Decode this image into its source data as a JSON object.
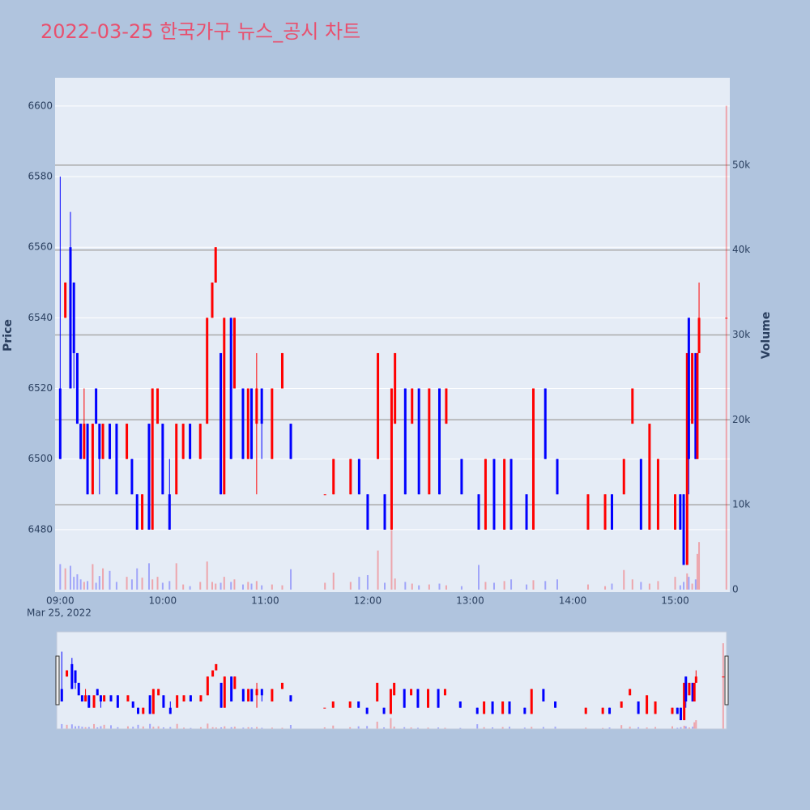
{
  "chart_data": {
    "type": "candlestick",
    "title": "2022-03-25 한국가구 뉴스_공시 차트",
    "ylabel": "Price",
    "y2label": "Volume",
    "x_date_label": "Mar 25, 2022",
    "increasing_color": "#ff0000",
    "decreasing_color": "#0000ff",
    "xlim": [
      "08:57",
      "15:32"
    ],
    "xticks": [
      "09:00",
      "10:00",
      "11:00",
      "12:00",
      "13:00",
      "14:00",
      "15:00"
    ],
    "ylim": [
      6462.3,
      6608
    ],
    "yticks": [
      6480,
      6500,
      6520,
      6540,
      6560,
      6580,
      6600
    ],
    "y2lim": [
      -300,
      60300
    ],
    "y2ticks": [
      0,
      {
        "value": 10000,
        "label": "10k"
      },
      {
        "value": 20000,
        "label": "20k"
      },
      {
        "value": 30000,
        "label": "30k"
      },
      {
        "value": 40000,
        "label": "40k"
      },
      {
        "value": 50000,
        "label": "50k"
      }
    ],
    "grid": true,
    "rangeslider": true,
    "x": [
      "09:00",
      "09:03",
      "09:06",
      "09:08",
      "09:10",
      "09:12",
      "09:14",
      "09:16",
      "09:19",
      "09:21",
      "09:23",
      "09:25",
      "09:29",
      "09:33",
      "09:39",
      "09:42",
      "09:45",
      "09:48",
      "09:52",
      "09:54",
      "09:57",
      "10:00",
      "10:04",
      "10:08",
      "10:12",
      "10:16",
      "10:22",
      "10:26",
      "10:29",
      "10:31",
      "10:34",
      "10:36",
      "10:40",
      "10:42",
      "10:47",
      "10:50",
      "10:52",
      "10:55",
      "10:58",
      "11:04",
      "11:10",
      "11:15",
      "11:35",
      "11:40",
      "11:50",
      "11:55",
      "12:00",
      "12:06",
      "12:10",
      "12:14",
      "12:16",
      "12:22",
      "12:26",
      "12:30",
      "12:36",
      "12:42",
      "12:46",
      "12:55",
      "13:05",
      "13:09",
      "13:14",
      "13:20",
      "13:24",
      "13:33",
      "13:37",
      "13:44",
      "13:51",
      "14:09",
      "14:19",
      "14:23",
      "14:30",
      "14:35",
      "14:40",
      "14:45",
      "14:50",
      "15:00",
      "15:03",
      "15:05",
      "15:07",
      "15:08",
      "15:10",
      "15:12",
      "15:13",
      "15:14",
      "15:30"
    ],
    "open": [
      6520,
      6540,
      6560,
      6550,
      6530,
      6510,
      6500,
      6510,
      6490,
      6520,
      6510,
      6500,
      6510,
      6510,
      6500,
      6500,
      6490,
      6480,
      6510,
      6480,
      6510,
      6510,
      6490,
      6490,
      6500,
      6510,
      6500,
      6510,
      6540,
      6550,
      6530,
      6490,
      6540,
      6520,
      6520,
      6500,
      6520,
      6510,
      6520,
      6500,
      6520,
      6510,
      6490,
      6490,
      6490,
      6500,
      6490,
      6500,
      6490,
      6480,
      6510,
      6520,
      6510,
      6520,
      6490,
      6520,
      6510,
      6500,
      6490,
      6480,
      6500,
      6480,
      6500,
      6490,
      6480,
      6520,
      6500,
      6480,
      6480,
      6490,
      6490,
      6510,
      6500,
      6480,
      6480,
      6480,
      6490,
      6490,
      6470,
      6540,
      6510,
      6530,
      6500,
      6530,
      6540
    ],
    "high": [
      6580,
      6550,
      6570,
      6550,
      6530,
      6510,
      6520,
      6510,
      6510,
      6520,
      6510,
      6510,
      6510,
      6510,
      6510,
      6500,
      6490,
      6490,
      6510,
      6520,
      6520,
      6510,
      6500,
      6510,
      6510,
      6510,
      6510,
      6540,
      6550,
      6560,
      6530,
      6540,
      6540,
      6540,
      6520,
      6520,
      6520,
      6530,
      6520,
      6520,
      6530,
      6510,
      6490,
      6500,
      6500,
      6500,
      6490,
      6530,
      6490,
      6520,
      6530,
      6520,
      6520,
      6520,
      6520,
      6520,
      6520,
      6500,
      6490,
      6500,
      6500,
      6500,
      6500,
      6490,
      6520,
      6520,
      6500,
      6490,
      6490,
      6490,
      6500,
      6520,
      6500,
      6510,
      6500,
      6490,
      6490,
      6490,
      6530,
      6540,
      6530,
      6530,
      6530,
      6550,
      6540
    ],
    "low": [
      6500,
      6540,
      6520,
      6520,
      6510,
      6500,
      6500,
      6490,
      6490,
      6510,
      6490,
      6500,
      6500,
      6490,
      6500,
      6490,
      6480,
      6480,
      6480,
      6480,
      6510,
      6490,
      6480,
      6490,
      6500,
      6500,
      6500,
      6510,
      6540,
      6550,
      6490,
      6490,
      6500,
      6520,
      6500,
      6500,
      6500,
      6490,
      6500,
      6500,
      6520,
      6500,
      6490,
      6490,
      6490,
      6490,
      6480,
      6500,
      6480,
      6480,
      6510,
      6490,
      6510,
      6490,
      6490,
      6490,
      6510,
      6490,
      6480,
      6480,
      6480,
      6480,
      6480,
      6480,
      6480,
      6500,
      6490,
      6480,
      6480,
      6480,
      6490,
      6510,
      6480,
      6480,
      6480,
      6480,
      6480,
      6470,
      6470,
      6490,
      6510,
      6500,
      6500,
      6530,
      6540
    ],
    "close": [
      6500,
      6550,
      6520,
      6530,
      6510,
      6500,
      6510,
      6490,
      6510,
      6510,
      6500,
      6510,
      6500,
      6490,
      6510,
      6490,
      6480,
      6490,
      6480,
      6520,
      6520,
      6490,
      6480,
      6510,
      6510,
      6500,
      6510,
      6540,
      6550,
      6560,
      6490,
      6540,
      6500,
      6540,
      6500,
      6520,
      6500,
      6520,
      6510,
      6520,
      6530,
      6500,
      6490,
      6500,
      6500,
      6490,
      6480,
      6530,
      6480,
      6520,
      6530,
      6490,
      6520,
      6490,
      6520,
      6490,
      6520,
      6490,
      6480,
      6500,
      6480,
      6500,
      6480,
      6480,
      6520,
      6500,
      6490,
      6490,
      6490,
      6480,
      6500,
      6520,
      6480,
      6510,
      6500,
      6490,
      6480,
      6470,
      6530,
      6500,
      6530,
      6500,
      6530,
      6540,
      6540
    ],
    "volume": [
      3000,
      2500,
      2800,
      1500,
      1800,
      1200,
      900,
      1000,
      3000,
      800,
      1600,
      2500,
      2200,
      900,
      1500,
      1200,
      2500,
      1400,
      3100,
      1200,
      1500,
      800,
      1000,
      3100,
      600,
      400,
      900,
      3300,
      900,
      700,
      800,
      1500,
      900,
      1200,
      600,
      900,
      700,
      1000,
      500,
      600,
      500,
      2400,
      800,
      2000,
      900,
      1500,
      1700,
      4600,
      800,
      7000,
      1300,
      900,
      700,
      500,
      600,
      700,
      500,
      400,
      2900,
      900,
      800,
      1000,
      1200,
      600,
      1100,
      1000,
      1200,
      600,
      400,
      700,
      2300,
      1200,
      900,
      700,
      1000,
      1500,
      500,
      900,
      1900,
      1500,
      700,
      1200,
      4200,
      5600,
      57000
    ]
  }
}
